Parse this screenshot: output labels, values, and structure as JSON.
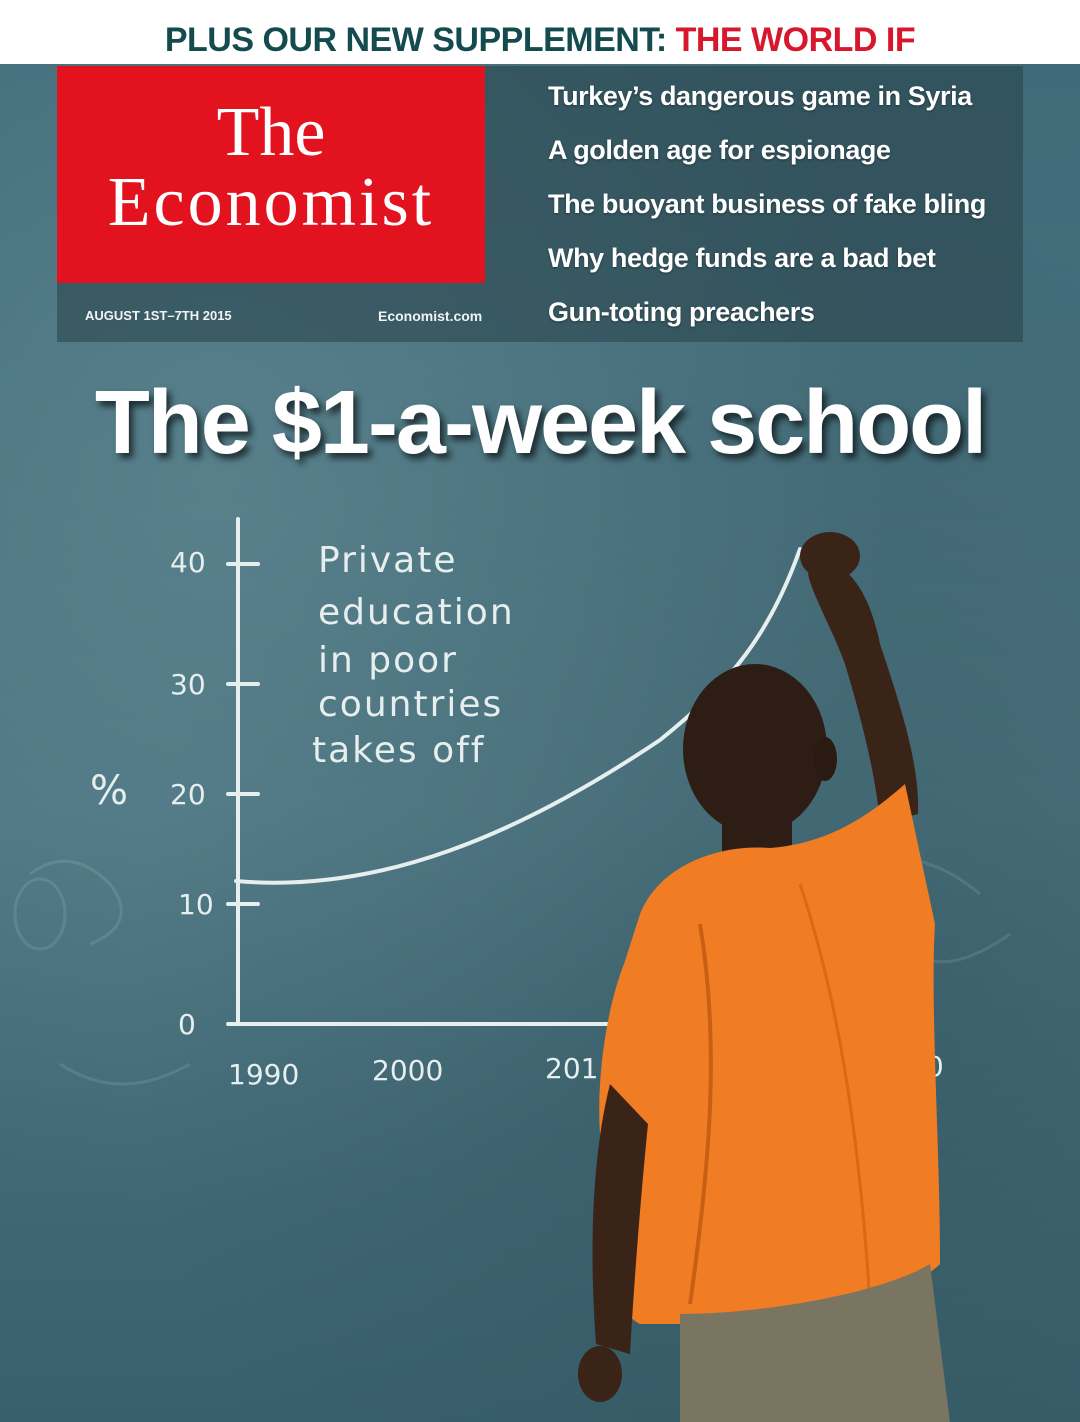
{
  "banner": {
    "lead": "PLUS OUR NEW SUPPLEMENT: ",
    "accent": "THE WORLD IF"
  },
  "masthead": {
    "line1": "The",
    "line2": "Economist"
  },
  "issue_date": "AUGUST 1ST–7TH 2015",
  "website": "Economist.com",
  "teasers": [
    "Turkey’s dangerous game in Syria",
    "A golden age for espionage",
    "The buoyant business of fake bling",
    "Why hedge funds are a bad bet",
    "Gun-toting preachers"
  ],
  "headline": "The $1-a-week school",
  "chalkboard": {
    "y_unit": "%",
    "y_ticks": [
      "40",
      "30",
      "20",
      "10",
      "0"
    ],
    "x_ticks": [
      "1990",
      "2000",
      "201",
      "30"
    ],
    "note_lines": [
      "Private",
      "education",
      "in poor",
      "countries",
      "takes off"
    ]
  },
  "colors": {
    "banner_lead": "#144b4f",
    "banner_accent": "#d7172d",
    "masthead_red": "#e2121f",
    "chalkboard": "#466f7b",
    "shirt": "#f07c24"
  }
}
